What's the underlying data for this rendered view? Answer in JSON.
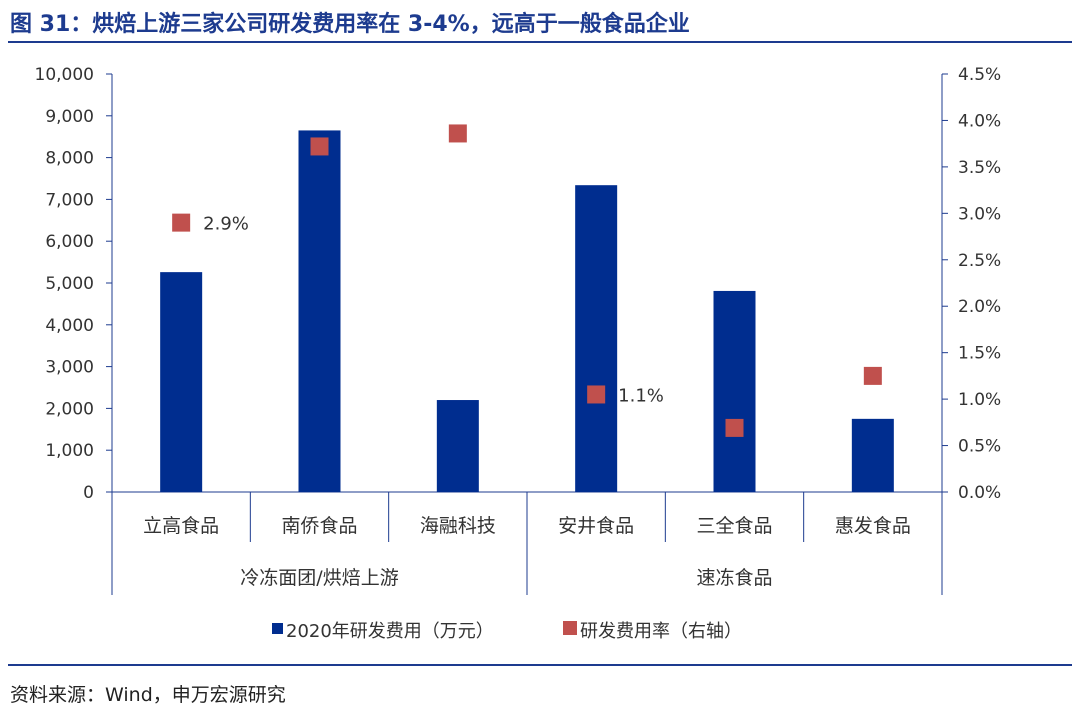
{
  "title": "图 31：烘焙上游三家公司研发费用率在 3-4%，远高于一般食品企业",
  "source": "资料来源：Wind，申万宏源研究",
  "colors": {
    "bar": "#002d8f",
    "marker": "#c0504d",
    "title": "#1d3b8f"
  },
  "chart_data": {
    "type": "bar+scatter",
    "categories": [
      "立高食品",
      "南侨食品",
      "海融科技",
      "安井食品",
      "三全食品",
      "惠发食品"
    ],
    "groups": [
      {
        "label": "冷冻面团/烘焙上游",
        "span": 3
      },
      {
        "label": "速冻食品",
        "span": 3
      }
    ],
    "series": [
      {
        "name": "2020年研发费用（万元）",
        "type": "bar",
        "axis": "left",
        "values": [
          5260,
          8650,
          2200,
          7340,
          4810,
          1750
        ]
      },
      {
        "name": "研发费用率（右轴）",
        "type": "marker",
        "axis": "right",
        "values": [
          2.9,
          3.72,
          3.86,
          1.05,
          0.69,
          1.25
        ]
      }
    ],
    "data_labels": [
      {
        "index": 0,
        "text": "2.9%"
      },
      {
        "index": 3,
        "text": "1.1%"
      }
    ],
    "left_axis": {
      "ylim": [
        0,
        10000
      ],
      "ticks": [
        "0",
        "1,000",
        "2,000",
        "3,000",
        "4,000",
        "5,000",
        "6,000",
        "7,000",
        "8,000",
        "9,000",
        "10,000"
      ]
    },
    "right_axis": {
      "ylim": [
        0,
        4.5
      ],
      "ticks": [
        "0.0%",
        "0.5%",
        "1.0%",
        "1.5%",
        "2.0%",
        "2.5%",
        "3.0%",
        "3.5%",
        "4.0%",
        "4.5%"
      ]
    },
    "grid": false,
    "legend": "bottom"
  }
}
